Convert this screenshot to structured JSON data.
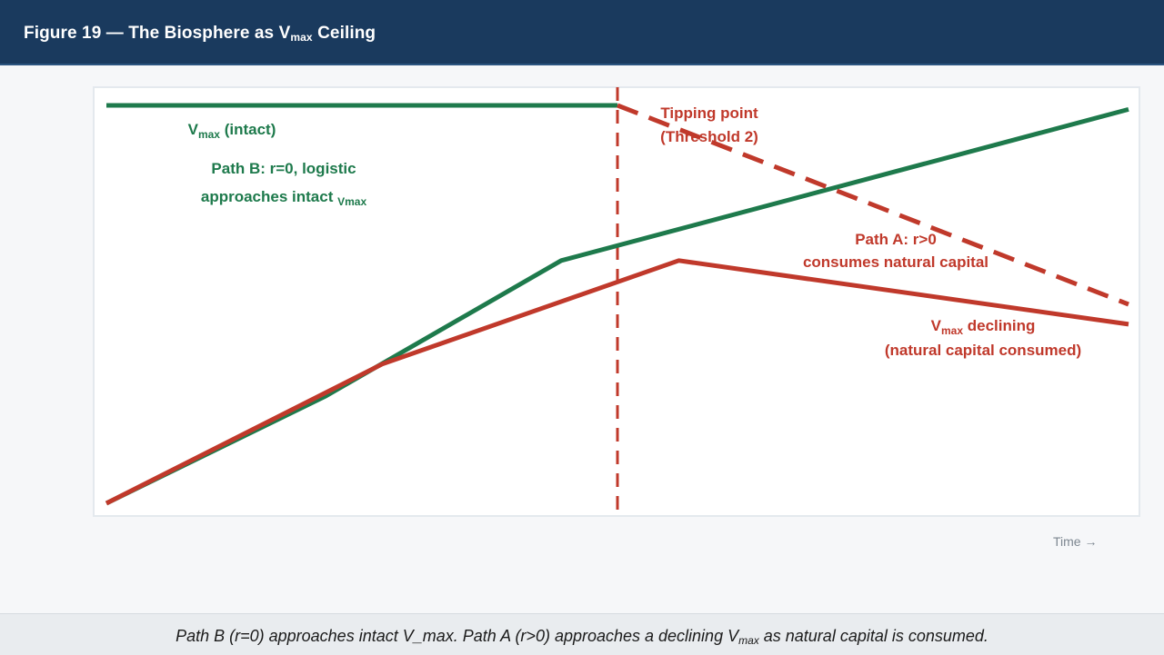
{
  "header": {
    "title_prefix": "Figure 19 — The Biosphere as V",
    "title_sub": "max",
    "title_suffix": " Ceiling"
  },
  "axis": {
    "x_label": "Time →"
  },
  "caption": {
    "part1": "Path B (r=0) approaches intact V_max. Path A (r>0) approaches a declining V",
    "sub": "max",
    "part2": " as natural capital is consumed."
  },
  "colors": {
    "green": "#1e7a4c",
    "red": "#c0392b",
    "header_bg": "#1a3a5e"
  },
  "chart_data": {
    "type": "line",
    "xlabel": "Time →",
    "ylabel": "",
    "grid": false,
    "series": [
      {
        "id": "vmax_intact",
        "line": "solid",
        "color": "#1e7a4c",
        "points": [
          [
            0,
            100
          ],
          [
            50,
            100
          ]
        ]
      },
      {
        "id": "path_b",
        "line": "solid",
        "color": "#1e7a4c",
        "points": [
          [
            0,
            0
          ],
          [
            21.5,
            27
          ],
          [
            44.5,
            61
          ],
          [
            100,
            99
          ]
        ]
      },
      {
        "id": "path_a",
        "line": "solid",
        "color": "#c0392b",
        "points": [
          [
            0,
            0
          ],
          [
            27,
            35
          ],
          [
            56,
            61
          ],
          [
            100,
            45
          ]
        ]
      },
      {
        "id": "vmax_declining",
        "line": "dashed",
        "color": "#c0392b",
        "points": [
          [
            50,
            100
          ],
          [
            100,
            50
          ]
        ]
      }
    ],
    "vlines": [
      {
        "x": 50,
        "line": "dashed",
        "color": "#c0392b"
      }
    ],
    "annotations": [
      {
        "id": "vmax-intact-label",
        "color": "#1e7a4c",
        "lines": [
          {
            "pre": "V",
            "sub": "max",
            "post": " (intact)"
          }
        ]
      },
      {
        "id": "path-b-label",
        "color": "#1e7a4c",
        "lines": [
          {
            "pre": "Path B: r=0, logistic"
          },
          {
            "pre": "approaches intact ",
            "sub": "Vmax"
          }
        ]
      },
      {
        "id": "tipping-point-label",
        "color": "#c0392b",
        "lines": [
          {
            "pre": "Tipping point"
          },
          {
            "pre": "(Threshold 2)"
          }
        ]
      },
      {
        "id": "path-a-label",
        "color": "#c0392b",
        "lines": [
          {
            "pre": "Path A: r>0"
          },
          {
            "pre": "consumes natural capital"
          }
        ]
      },
      {
        "id": "vmax-declining-label",
        "color": "#c0392b",
        "lines": [
          {
            "pre": "V",
            "sub": "max",
            "post": " declining"
          },
          {
            "pre": "(natural capital consumed)"
          }
        ]
      }
    ]
  }
}
